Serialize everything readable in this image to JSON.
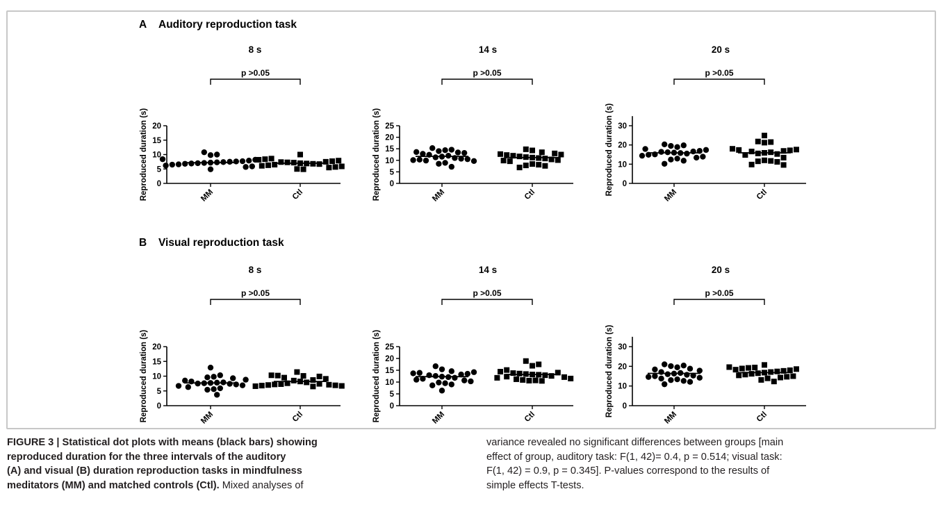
{
  "panels": [
    {
      "letter": "A",
      "title": "Auditory reproduction task"
    },
    {
      "letter": "B",
      "title": "Visual reproduction task"
    }
  ],
  "caption": {
    "left_lines": [
      {
        "bold": "FIGURE 3 | Statistical dot plots with means (black bars) showing",
        "normal": ""
      },
      {
        "bold": "reproduced duration for the three intervals of the auditory",
        "normal": ""
      },
      {
        "bold": "(A) and visual (B) duration reproduction tasks in mindfulness",
        "normal": ""
      },
      {
        "bold": "meditators (MM) and matched controls (Ctl).",
        "normal": " Mixed analyses of"
      }
    ],
    "right_lines": [
      "variance revealed no significant differences between groups [main",
      "effect of group, auditory task: F(1, 42)= 0.4, p = 0.514; visual task:",
      "F(1, 42) = 0.9, p = 0.345]. P-values correspond to the results of",
      "simple effects T-tests."
    ]
  },
  "chart_data": [
    {
      "panel": "A",
      "type": "scatter",
      "title": "8 s",
      "ylabel": "Reproduced duration (s)",
      "categories": [
        "MM",
        "Ctl"
      ],
      "ylim": [
        0,
        20
      ],
      "yticks": [
        0,
        5,
        10,
        15,
        20
      ],
      "annotation": "p >0.05",
      "series": [
        {
          "name": "MM",
          "marker": "circle",
          "mean": 7.2,
          "values": [
            10.8,
            10.0,
            9.8,
            8.4,
            8.2,
            7.9,
            7.7,
            7.6,
            7.5,
            7.4,
            7.3,
            7.2,
            7.1,
            7.0,
            6.9,
            6.8,
            6.6,
            6.5,
            6.2,
            5.9,
            5.7,
            4.9
          ]
        },
        {
          "name": "Ctl",
          "marker": "square",
          "mean": 7.0,
          "values": [
            10.0,
            8.6,
            8.4,
            8.2,
            7.9,
            7.7,
            7.5,
            7.4,
            7.3,
            7.2,
            7.0,
            6.9,
            6.8,
            6.7,
            6.5,
            6.3,
            6.1,
            5.9,
            5.7,
            5.5,
            5.0,
            4.9
          ]
        }
      ]
    },
    {
      "panel": "A",
      "type": "scatter",
      "title": "14 s",
      "ylabel": "Reproduced duration (s)",
      "categories": [
        "MM",
        "Ctl"
      ],
      "ylim": [
        0,
        25
      ],
      "yticks": [
        0,
        5,
        10,
        15,
        20,
        25
      ],
      "annotation": "p >0.05",
      "series": [
        {
          "name": "MM",
          "marker": "circle",
          "mean": 11.7,
          "values": [
            15.3,
            14.6,
            14.4,
            14.0,
            13.6,
            13.4,
            13.2,
            12.8,
            12.4,
            12.0,
            11.6,
            11.3,
            11.0,
            10.7,
            10.5,
            10.3,
            10.1,
            9.9,
            9.7,
            8.9,
            8.5,
            7.2
          ]
        },
        {
          "name": "Ctl",
          "marker": "square",
          "mean": 11.2,
          "values": [
            14.8,
            14.3,
            13.5,
            13.0,
            12.7,
            12.5,
            12.3,
            12.0,
            11.7,
            11.4,
            11.2,
            11.0,
            10.8,
            10.4,
            10.1,
            9.9,
            9.6,
            8.4,
            8.1,
            7.8,
            7.6,
            6.9
          ]
        }
      ]
    },
    {
      "panel": "A",
      "type": "scatter",
      "title": "20 s",
      "ylabel": "Reproduced duration (s)",
      "categories": [
        "MM",
        "Ctl"
      ],
      "ylim": [
        0,
        35
      ],
      "yticks": [
        0,
        10,
        20,
        30
      ],
      "annotation": "p >0.05",
      "series": [
        {
          "name": "MM",
          "marker": "circle",
          "mean": 15.9,
          "values": [
            20.3,
            19.8,
            19.5,
            18.9,
            17.9,
            17.4,
            16.9,
            16.6,
            16.4,
            16.2,
            16.0,
            15.8,
            15.5,
            15.1,
            14.9,
            14.4,
            13.9,
            13.4,
            12.9,
            12.4,
            11.8,
            10.2
          ]
        },
        {
          "name": "Ctl",
          "marker": "square",
          "mean": 15.9,
          "values": [
            24.9,
            21.8,
            21.5,
            21.2,
            18.0,
            17.6,
            17.4,
            17.2,
            16.9,
            16.6,
            16.2,
            15.9,
            15.6,
            15.3,
            14.8,
            13.4,
            12.0,
            11.7,
            11.5,
            11.2,
            9.8,
            9.6
          ]
        }
      ]
    },
    {
      "panel": "B",
      "type": "scatter",
      "title": "8 s",
      "ylabel": "Reproduced duration (s)",
      "categories": [
        "MM",
        "Ctl"
      ],
      "ylim": [
        0,
        20
      ],
      "yticks": [
        0,
        5,
        10,
        15,
        20
      ],
      "annotation": "p >0.05",
      "series": [
        {
          "name": "MM",
          "marker": "circle",
          "mean": 7.7,
          "values": [
            12.9,
            10.3,
            9.8,
            9.6,
            9.3,
            8.8,
            8.5,
            8.2,
            7.9,
            7.8,
            7.7,
            7.6,
            7.5,
            7.4,
            7.2,
            6.9,
            6.7,
            6.3,
            5.9,
            5.6,
            5.4,
            3.7
          ]
        },
        {
          "name": "Ctl",
          "marker": "square",
          "mean": 8.2,
          "values": [
            11.4,
            10.3,
            10.2,
            10.1,
            9.9,
            9.5,
            9.1,
            8.7,
            8.5,
            8.2,
            7.9,
            7.6,
            7.4,
            7.3,
            7.2,
            7.1,
            7.0,
            6.9,
            6.8,
            6.7,
            6.6,
            6.5
          ]
        }
      ]
    },
    {
      "panel": "B",
      "type": "scatter",
      "title": "14 s",
      "ylabel": "Reproduced duration (s)",
      "categories": [
        "MM",
        "Ctl"
      ],
      "ylim": [
        0,
        25
      ],
      "yticks": [
        0,
        5,
        10,
        15,
        20,
        25
      ],
      "annotation": "p >0.05",
      "series": [
        {
          "name": "MM",
          "marker": "circle",
          "mean": 12.3,
          "values": [
            16.7,
            15.4,
            14.6,
            14.2,
            13.9,
            13.7,
            13.5,
            13.2,
            12.9,
            12.6,
            12.3,
            12.1,
            11.8,
            11.4,
            11.0,
            10.7,
            10.3,
            9.8,
            9.5,
            9.0,
            8.6,
            6.4
          ]
        },
        {
          "name": "Ctl",
          "marker": "square",
          "mean": 13.2,
          "values": [
            18.9,
            17.5,
            16.9,
            15.1,
            14.4,
            14.0,
            13.8,
            13.6,
            13.4,
            13.2,
            13.1,
            12.9,
            12.6,
            12.3,
            12.1,
            11.8,
            11.5,
            11.2,
            10.9,
            10.7,
            10.6,
            10.5
          ]
        }
      ]
    },
    {
      "panel": "B",
      "type": "scatter",
      "title": "20 s",
      "ylabel": "Reproduced duration (s)",
      "categories": [
        "MM",
        "Ctl"
      ],
      "ylim": [
        0,
        35
      ],
      "yticks": [
        0,
        10,
        20,
        30
      ],
      "annotation": "p >0.05",
      "series": [
        {
          "name": "MM",
          "marker": "circle",
          "mean": 16.4,
          "values": [
            21.0,
            20.4,
            20.1,
            19.5,
            18.8,
            18.4,
            17.8,
            17.1,
            16.6,
            16.3,
            16.0,
            15.7,
            15.3,
            15.0,
            14.6,
            14.2,
            13.8,
            13.4,
            13.0,
            12.6,
            12.1,
            10.9
          ]
        },
        {
          "name": "Ctl",
          "marker": "square",
          "mean": 16.8,
          "values": [
            20.7,
            19.6,
            19.4,
            19.2,
            18.9,
            18.6,
            18.3,
            18.0,
            17.7,
            17.4,
            17.1,
            16.8,
            16.5,
            16.2,
            15.8,
            15.4,
            15.0,
            14.7,
            14.3,
            13.9,
            13.1,
            12.3
          ]
        }
      ]
    }
  ]
}
